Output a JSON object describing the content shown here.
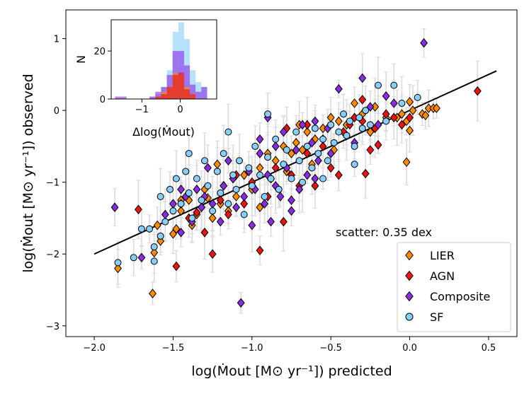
{
  "chart_data": [
    {
      "type": "scatter",
      "xlabel": "log(Ṁ_out [M⊙ yr⁻¹]) predicted",
      "ylabel": "log(Ṁ_out [M⊙ yr⁻¹]) observed",
      "xlabel_text": "log(Ṁout [M⊙ yr⁻¹]) predicted",
      "ylabel_text": "log(Ṁout [M⊙ yr⁻¹]) observed",
      "xlim": [
        -2.18,
        0.68
      ],
      "ylim": [
        -3.15,
        1.4
      ],
      "xticks": [
        -2.0,
        -1.5,
        -1.0,
        -0.5,
        0.0,
        0.5
      ],
      "xtick_labels": [
        "−2.0",
        "−1.5",
        "−1.0",
        "−0.5",
        "0.0",
        "0.5"
      ],
      "yticks": [
        -3,
        -2,
        -1,
        0,
        1
      ],
      "ytick_labels": [
        "−3",
        "−2",
        "−1",
        "0",
        "1"
      ],
      "annotation": "scatter: 0.35 dex",
      "fit_line": {
        "x": [
          -2.0,
          0.55
        ],
        "y": [
          -2.0,
          0.55
        ]
      },
      "legend": [
        "LIER",
        "AGN",
        "Composite",
        "SF"
      ],
      "series": [
        {
          "name": "LIER",
          "marker": "diamond",
          "color": "#ff8c00",
          "points": [
            [
              -1.85,
              -2.2
            ],
            [
              -1.62,
              -1.98
            ],
            [
              -1.63,
              -2.55
            ],
            [
              -1.58,
              -1.82
            ],
            [
              -1.6,
              -1.6
            ],
            [
              -1.5,
              -1.72
            ],
            [
              -1.48,
              -1.65
            ],
            [
              -1.45,
              -1.4
            ],
            [
              -1.4,
              -1.25
            ],
            [
              -1.38,
              -1.6
            ],
            [
              -1.35,
              -1.45
            ],
            [
              -1.32,
              -1.35
            ],
            [
              -1.3,
              -1.1
            ],
            [
              -1.28,
              -1.22
            ],
            [
              -1.25,
              -1.5
            ],
            [
              -1.2,
              -1.3
            ],
            [
              -1.18,
              -1.05
            ],
            [
              -1.15,
              -1.4
            ],
            [
              -1.12,
              -0.95
            ],
            [
              -1.1,
              -1.2
            ],
            [
              -1.05,
              -0.9
            ],
            [
              -1.0,
              -1.1
            ],
            [
              -0.95,
              -0.8
            ],
            [
              -0.9,
              -0.6
            ],
            [
              -0.88,
              -0.95
            ],
            [
              -0.85,
              -0.7
            ],
            [
              -0.8,
              -0.5
            ],
            [
              -0.78,
              -0.85
            ],
            [
              -0.75,
              -0.6
            ],
            [
              -0.72,
              -0.45
            ],
            [
              -0.7,
              -0.2
            ],
            [
              -0.68,
              -0.55
            ],
            [
              -0.65,
              -0.3
            ],
            [
              -0.62,
              -0.75
            ],
            [
              -0.6,
              -0.4
            ],
            [
              -0.55,
              -0.25
            ],
            [
              -0.5,
              -0.1
            ],
            [
              -0.48,
              -0.55
            ],
            [
              -0.45,
              -0.15
            ],
            [
              -0.4,
              -0.2
            ],
            [
              -0.35,
              0.1
            ],
            [
              -0.3,
              -0.05
            ],
            [
              -0.25,
              -0.3
            ],
            [
              -0.22,
              0.05
            ],
            [
              -0.15,
              -0.1
            ],
            [
              -0.08,
              -0.1
            ],
            [
              -0.05,
              -0.05
            ],
            [
              -0.02,
              -0.15
            ],
            [
              0.0,
              -0.28
            ],
            [
              0.0,
              0.12
            ],
            [
              0.02,
              0.0
            ],
            [
              -0.02,
              -0.72
            ],
            [
              0.08,
              -0.05
            ],
            [
              0.1,
              -0.07
            ],
            [
              0.12,
              0.03
            ],
            [
              0.15,
              0.03
            ],
            [
              0.17,
              0.03
            ],
            [
              -1.45,
              -1.25
            ],
            [
              -1.22,
              -0.75
            ],
            [
              -0.95,
              -1.35
            ]
          ]
        },
        {
          "name": "AGN",
          "marker": "diamond",
          "color": "#ee1111",
          "points": [
            [
              -1.72,
              -1.38
            ],
            [
              -1.48,
              -2.17
            ],
            [
              -1.45,
              -1.3
            ],
            [
              -1.4,
              -1.5
            ],
            [
              -1.35,
              -1.42
            ],
            [
              -1.3,
              -1.7
            ],
            [
              -1.25,
              -2.0
            ],
            [
              -1.2,
              -1.25
            ],
            [
              -1.15,
              -1.45
            ],
            [
              -1.1,
              -0.9
            ],
            [
              -1.05,
              -1.3
            ],
            [
              -1.0,
              -1.0
            ],
            [
              -0.95,
              -1.95
            ],
            [
              -0.9,
              -1.2
            ],
            [
              -0.85,
              -0.8
            ],
            [
              -0.8,
              -1.55
            ],
            [
              -0.75,
              -0.9
            ],
            [
              -0.7,
              -1.05
            ],
            [
              -0.65,
              -0.6
            ],
            [
              -0.6,
              -1.05
            ],
            [
              -0.55,
              -0.5
            ],
            [
              -0.5,
              -0.8
            ],
            [
              -0.45,
              -0.9
            ],
            [
              -0.42,
              -0.3
            ],
            [
              -0.38,
              -0.2
            ],
            [
              -0.35,
              -0.1
            ],
            [
              -0.3,
              -0.15
            ],
            [
              -0.28,
              -0.88
            ],
            [
              -0.25,
              -0.55
            ],
            [
              -0.22,
              -0.25
            ],
            [
              -0.2,
              -0.48
            ],
            [
              -0.15,
              -0.05
            ],
            [
              -0.1,
              -0.1
            ],
            [
              -0.05,
              -0.2
            ],
            [
              0.0,
              -0.1
            ],
            [
              0.43,
              0.27
            ],
            [
              -0.3,
              0.15
            ],
            [
              -0.65,
              -0.2
            ],
            [
              -0.78,
              -0.25
            ]
          ]
        },
        {
          "name": "Composite",
          "marker": "diamond",
          "color": "#8a2be2",
          "points": [
            [
              -1.87,
              -1.35
            ],
            [
              -1.7,
              -2.05
            ],
            [
              -1.55,
              -1.45
            ],
            [
              -1.5,
              -1.3
            ],
            [
              -1.45,
              -1.7
            ],
            [
              -1.42,
              -1.2
            ],
            [
              -1.38,
              -1.55
            ],
            [
              -1.35,
              -1.1
            ],
            [
              -1.32,
              -1.35
            ],
            [
              -1.28,
              -0.8
            ],
            [
              -1.25,
              -1.3
            ],
            [
              -1.2,
              -1.55
            ],
            [
              -1.18,
              -1.05
            ],
            [
              -1.15,
              -0.7
            ],
            [
              -1.1,
              -1.35
            ],
            [
              -1.07,
              -2.68
            ],
            [
              -1.05,
              -1.2
            ],
            [
              -1.02,
              -0.85
            ],
            [
              -1.0,
              -1.6
            ],
            [
              -0.98,
              -1.1
            ],
            [
              -0.95,
              -0.6
            ],
            [
              -0.92,
              -1.3
            ],
            [
              -0.9,
              -0.9
            ],
            [
              -0.88,
              -1.55
            ],
            [
              -0.85,
              -0.5
            ],
            [
              -0.82,
              -1.2
            ],
            [
              -0.8,
              -0.3
            ],
            [
              -0.78,
              -0.8
            ],
            [
              -0.75,
              -1.4
            ],
            [
              -0.72,
              -0.55
            ],
            [
              -0.7,
              -1.1
            ],
            [
              -0.68,
              -0.2
            ],
            [
              -0.65,
              -0.9
            ],
            [
              -0.62,
              -0.45
            ],
            [
              -0.6,
              -0.15
            ],
            [
              -0.58,
              -0.7
            ],
            [
              -0.55,
              -0.4
            ],
            [
              -0.52,
              -0.25
            ],
            [
              -0.5,
              -0.6
            ],
            [
              -0.45,
              0.3
            ],
            [
              -0.4,
              -0.35
            ],
            [
              -0.35,
              -0.45
            ],
            [
              -0.3,
              0.45
            ],
            [
              -0.25,
              0.05
            ],
            [
              -0.2,
              -0.2
            ],
            [
              -0.15,
              0.2
            ],
            [
              -0.1,
              0.1
            ],
            [
              0.09,
              0.94
            ],
            [
              -0.95,
              -0.4
            ],
            [
              -1.3,
              -1.2
            ],
            [
              -0.85,
              -1.05
            ],
            [
              -0.75,
              -1.25
            ],
            [
              -0.6,
              -0.95
            ],
            [
              -1.45,
              -1.1
            ],
            [
              -1.12,
              -0.95
            ],
            [
              -0.9,
              -0.1
            ]
          ]
        },
        {
          "name": "SF",
          "marker": "circle",
          "color": "#87cefa",
          "points": [
            [
              -1.85,
              -2.12
            ],
            [
              -1.75,
              -2.05
            ],
            [
              -1.7,
              -1.65
            ],
            [
              -1.62,
              -2.1
            ],
            [
              -1.58,
              -1.2
            ],
            [
              -1.55,
              -1.55
            ],
            [
              -1.52,
              -1.1
            ],
            [
              -1.5,
              -1.4
            ],
            [
              -1.48,
              -0.95
            ],
            [
              -1.45,
              -1.3
            ],
            [
              -1.42,
              -0.85
            ],
            [
              -1.4,
              -1.15
            ],
            [
              -1.38,
              -1.5
            ],
            [
              -1.35,
              -0.95
            ],
            [
              -1.32,
              -1.25
            ],
            [
              -1.3,
              -0.7
            ],
            [
              -1.28,
              -1.05
            ],
            [
              -1.25,
              -1.4
            ],
            [
              -1.22,
              -0.85
            ],
            [
              -1.2,
              -1.15
            ],
            [
              -1.18,
              -0.6
            ],
            [
              -1.15,
              -1.3
            ],
            [
              -1.12,
              -0.9
            ],
            [
              -1.1,
              -1.1
            ],
            [
              -1.08,
              -0.7
            ],
            [
              -1.05,
              -1.45
            ],
            [
              -1.02,
              -0.8
            ],
            [
              -1.0,
              -1.05
            ],
            [
              -0.98,
              -0.5
            ],
            [
              -0.95,
              -0.9
            ],
            [
              -0.92,
              -1.2
            ],
            [
              -0.9,
              -0.65
            ],
            [
              -0.88,
              -0.95
            ],
            [
              -0.85,
              -0.4
            ],
            [
              -0.83,
              -1.1
            ],
            [
              -0.8,
              -0.75
            ],
            [
              -0.78,
              -0.55
            ],
            [
              -0.75,
              -0.95
            ],
            [
              -0.72,
              -0.3
            ],
            [
              -0.7,
              -0.7
            ],
            [
              -0.68,
              -1.0
            ],
            [
              -0.65,
              -0.5
            ],
            [
              -0.62,
              -0.8
            ],
            [
              -0.6,
              -0.25
            ],
            [
              -0.58,
              -0.6
            ],
            [
              -0.55,
              -0.4
            ],
            [
              -0.52,
              -0.7
            ],
            [
              -0.5,
              -0.2
            ],
            [
              -0.48,
              -0.45
            ],
            [
              -0.45,
              -0.3
            ],
            [
              -0.42,
              -0.05
            ],
            [
              -0.4,
              -0.35
            ],
            [
              -0.38,
              -0.15
            ],
            [
              -0.35,
              -0.5
            ],
            [
              -0.32,
              -0.1
            ],
            [
              -0.3,
              -0.25
            ],
            [
              -0.28,
              0.0
            ],
            [
              -0.25,
              -0.2
            ],
            [
              -0.2,
              0.35
            ],
            [
              -0.1,
              0.35
            ],
            [
              0.05,
              0.18
            ],
            [
              -0.05,
              0.1
            ],
            [
              -1.62,
              -1.9
            ],
            [
              -1.58,
              -1.75
            ],
            [
              -1.4,
              -0.6
            ],
            [
              -1.15,
              -0.3
            ],
            [
              -0.9,
              -0.05
            ],
            [
              -0.55,
              -0.95
            ],
            [
              -0.35,
              -0.75
            ],
            [
              -0.15,
              -0.15
            ],
            [
              -1.65,
              -1.65
            ]
          ]
        }
      ]
    },
    {
      "type": "histogram",
      "title": "",
      "xlabel": "Δlog(Ṁout)",
      "xlabel_text": "Δlog(Ṁout)",
      "ylabel": "N",
      "xlim": [
        -1.8,
        0.95
      ],
      "ylim": [
        0,
        33
      ],
      "xticks": [
        -1,
        0
      ],
      "xtick_labels": [
        "−1",
        "0"
      ],
      "yticks": [
        0,
        20
      ],
      "ytick_labels": [
        "0",
        "20"
      ],
      "bins": [
        -1.7,
        -1.55,
        -1.4,
        -1.25,
        -1.1,
        -0.95,
        -0.8,
        -0.65,
        -0.5,
        -0.35,
        -0.2,
        -0.05,
        0.1,
        0.25,
        0.4,
        0.55,
        0.7
      ],
      "series": [
        {
          "name": "SF",
          "color": "#87cefa",
          "alpha": 0.6,
          "counts": [
            0,
            0,
            0,
            0,
            0,
            0,
            1,
            2,
            5,
            12,
            28,
            32,
            25,
            12,
            7,
            5
          ]
        },
        {
          "name": "Composite",
          "color": "#8a2be2",
          "alpha": 0.6,
          "counts": [
            1,
            1,
            0,
            0,
            0,
            0,
            1,
            3,
            5,
            10,
            20,
            20,
            14,
            6,
            3,
            5
          ]
        },
        {
          "name": "LIER",
          "color": "#ff8c00",
          "alpha": 0.6,
          "counts": [
            0,
            0,
            0,
            0,
            0,
            0,
            0,
            1,
            3,
            5,
            11,
            10,
            5,
            2,
            0,
            0
          ]
        },
        {
          "name": "AGN",
          "color": "#ee1111",
          "alpha": 0.6,
          "counts": [
            0,
            0,
            0,
            0,
            0,
            0,
            0,
            1,
            2,
            5,
            10,
            11,
            4,
            2,
            0,
            0
          ]
        }
      ]
    }
  ]
}
